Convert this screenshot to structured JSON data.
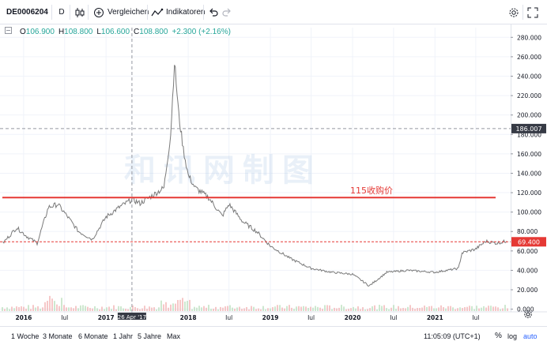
{
  "toolbar": {
    "symbol": "DE0006204",
    "interval": "D",
    "compare_label": "Vergleichen",
    "indicators_label": "Indikatoren"
  },
  "legend": {
    "open_label": "O",
    "open": "106.900",
    "high_label": "H",
    "high": "108.800",
    "low_label": "L",
    "low": "106.600",
    "close_label": "C",
    "close": "108.800",
    "change": "+2.300 (+2.16%)"
  },
  "chart_data": {
    "type": "line",
    "series": [
      {
        "x": [
          "2015-10-01",
          "2015-12-01",
          "2016-01-15",
          "2016-03-01",
          "2016-04-20",
          "2016-06-01",
          "2016-07-15",
          "2016-09-01",
          "2016-11-01",
          "2017-01-01",
          "2017-03-01",
          "2017-04-26",
          "2017-06-01",
          "2017-08-01",
          "2017-09-15",
          "2017-10-15",
          "2017-11-01",
          "2017-11-20",
          "2017-12-10",
          "2018-01-01",
          "2018-02-01",
          "2018-04-01",
          "2018-06-01",
          "2018-07-01",
          "2018-09-01",
          "2018-11-01",
          "2019-01-01",
          "2019-04-01",
          "2019-07-01",
          "2019-10-01",
          "2020-01-01",
          "2020-03-15",
          "2020-06-01",
          "2020-09-01",
          "2021-01-01",
          "2021-04-15",
          "2021-05-01",
          "2021-07-01",
          "2021-08-15",
          "2021-10-01",
          "2021-11-15"
        ],
        "values": [
          68,
          84,
          75,
          68,
          105,
          108,
          95,
          80,
          72,
          95,
          105,
          113,
          109,
          118,
          125,
          180,
          255,
          200,
          165,
          138,
          125,
          115,
          96,
          108,
          90,
          80,
          65,
          52,
          42,
          38,
          36,
          24,
          38,
          40,
          38,
          42,
          58,
          62,
          70,
          68,
          70
        ]
      }
    ],
    "x_tick_labels": [
      "2016",
      "Jul",
      "2017",
      "2018",
      "Jul",
      "2019",
      "Jul",
      "2020",
      "Jul",
      "2021",
      "Jul"
    ],
    "y_ticks": [
      0,
      20,
      40,
      60,
      80,
      100,
      120,
      140,
      160,
      180,
      200,
      220,
      240,
      260,
      280
    ],
    "y_tick_labels": [
      "0.000",
      "20.000",
      "40.000",
      "60.000",
      "80.000",
      "100.000",
      "120.000",
      "140.000",
      "160.000",
      "180.000",
      "200.000",
      "220.000",
      "240.000",
      "260.000",
      "280.000"
    ],
    "ylim": [
      -6,
      290
    ],
    "grid": true,
    "annotations": [
      {
        "type": "hline",
        "value": 115,
        "label": "115收购价",
        "color": "#e53935",
        "style": "solid"
      },
      {
        "type": "hline",
        "value": 69.4,
        "label": "69.400",
        "color": "#e53935",
        "style": "dashed"
      },
      {
        "type": "crosshair",
        "value": 186.007,
        "label": "186.007",
        "x_label": "26 Apr '17"
      }
    ],
    "watermark": "和讯网制图"
  },
  "bottombar": {
    "ranges": [
      "1 Woche",
      "3 Monate",
      "6 Monate",
      "1 Jahr",
      "5 Jahre",
      "Max"
    ],
    "time": "11:05:09 (UTC+1)",
    "percent_label": "%",
    "log_label": "log",
    "auto_label": "auto"
  },
  "colors": {
    "line": "#7a7a7a",
    "positive": "#26a69a",
    "negative": "#ef5350",
    "annotation": "#e53935",
    "crosshair": "#9598a1"
  }
}
